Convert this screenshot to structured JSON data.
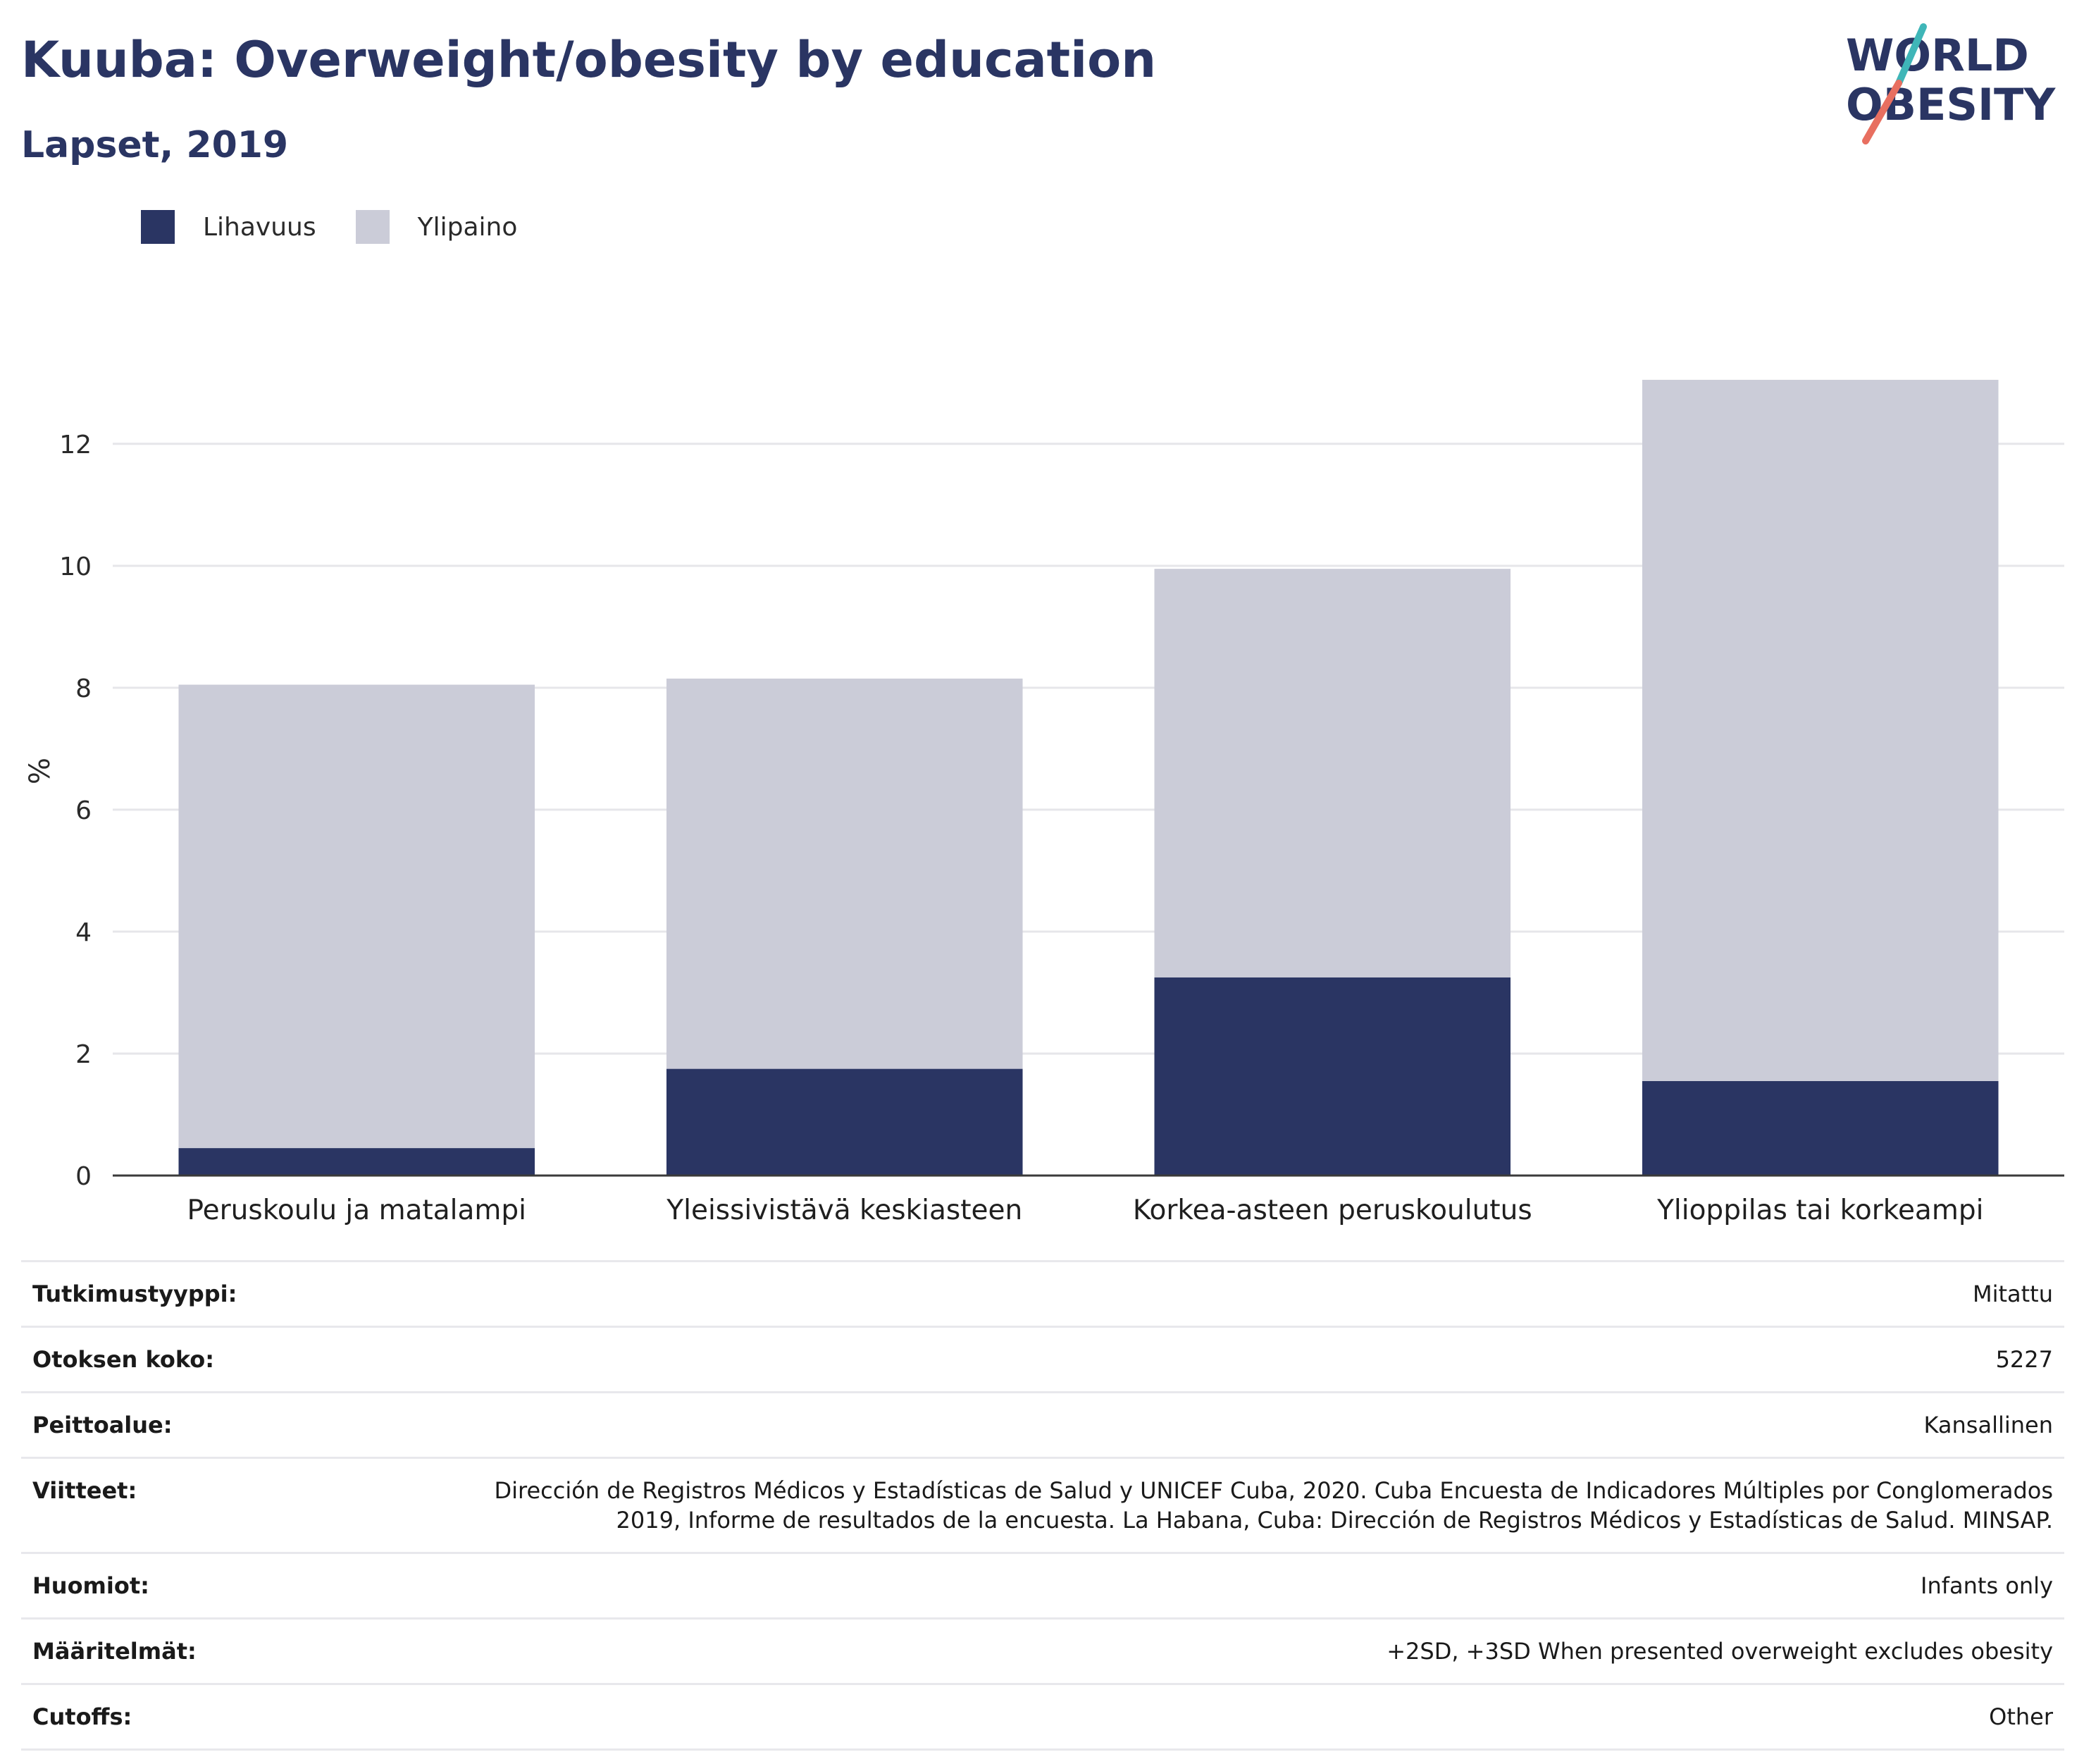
{
  "header": {
    "title": "Kuuba: Overweight/obesity by education",
    "subtitle": "Lapset, 2019"
  },
  "logo": {
    "line1": "WORLD",
    "line2": "OBESITY",
    "icon": "world-obesity-logo"
  },
  "legend": [
    {
      "label": "Lihavuus",
      "color": "#2a3563"
    },
    {
      "label": "Ylipaino",
      "color": "#cbccd8"
    }
  ],
  "chart_data": {
    "type": "bar",
    "stacked": true,
    "title": "Kuuba: Overweight/obesity by education",
    "subtitle": "Lapset, 2019",
    "xlabel": "",
    "ylabel": "%",
    "ylim": [
      0,
      13.5
    ],
    "yticks": [
      0,
      2,
      4,
      6,
      8,
      10,
      12
    ],
    "grid": true,
    "legend_position": "top-left",
    "categories": [
      "Peruskoulu ja matalampi",
      "Yleissivistävä keskiasteen",
      "Korkea-asteen peruskoulutus",
      "Ylioppilas tai korkeampi"
    ],
    "series": [
      {
        "name": "Lihavuus",
        "color": "#2a3563",
        "values": [
          0.45,
          1.75,
          3.25,
          1.55
        ]
      },
      {
        "name": "Ylipaino",
        "color": "#cbccd8",
        "values": [
          7.6,
          6.4,
          6.7,
          11.5
        ]
      }
    ]
  },
  "info": [
    {
      "key": "Tutkimustyyppi:",
      "value": "Mitattu"
    },
    {
      "key": "Otoksen koko:",
      "value": "5227"
    },
    {
      "key": "Peittoalue:",
      "value": "Kansallinen"
    },
    {
      "key": "Viitteet:",
      "value": "Dirección de Registros Médicos y Estadísticas de Salud y UNICEF Cuba, 2020. Cuba Encuesta de Indicadores Múltiples por Conglomerados 2019, Informe de resultados de la encuesta. La Habana, Cuba: Dirección de Registros Médicos y Estadísticas de Salud. MINSAP."
    },
    {
      "key": "Huomiot:",
      "value": "Infants only"
    },
    {
      "key": "Määritelmät:",
      "value": "+2SD, +3SD When presented overweight excludes obesity"
    },
    {
      "key": "Cutoffs:",
      "value": "Other"
    }
  ]
}
